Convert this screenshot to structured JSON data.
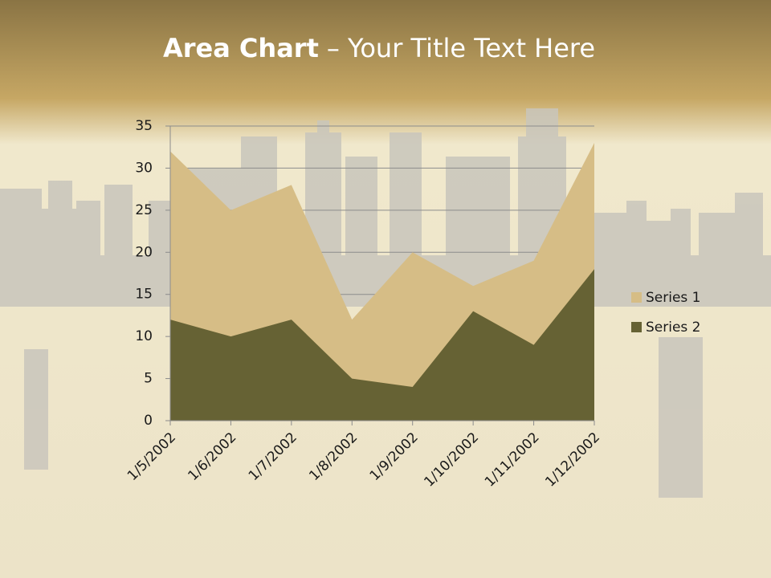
{
  "chart_data": {
    "type": "area",
    "title": [
      "Area Chart",
      "– Your Title Text Here"
    ],
    "categories": [
      "1/5/2002",
      "1/6/2002",
      "1/7/2002",
      "1/8/2002",
      "1/9/2002",
      "1/10/2002",
      "1/11/2002",
      "1/12/2002"
    ],
    "series": [
      {
        "name": "Series 1",
        "color": "#d6bd86",
        "values": [
          32,
          25,
          28,
          12,
          20,
          16,
          19,
          33
        ]
      },
      {
        "name": "Series 2",
        "color": "#666234",
        "values": [
          12,
          10,
          12,
          5,
          4,
          13,
          9,
          18
        ]
      }
    ],
    "ylim": [
      0,
      35
    ],
    "yticks": [
      0,
      5,
      10,
      15,
      20,
      25,
      30,
      35
    ],
    "grid": true,
    "legend": "right"
  }
}
